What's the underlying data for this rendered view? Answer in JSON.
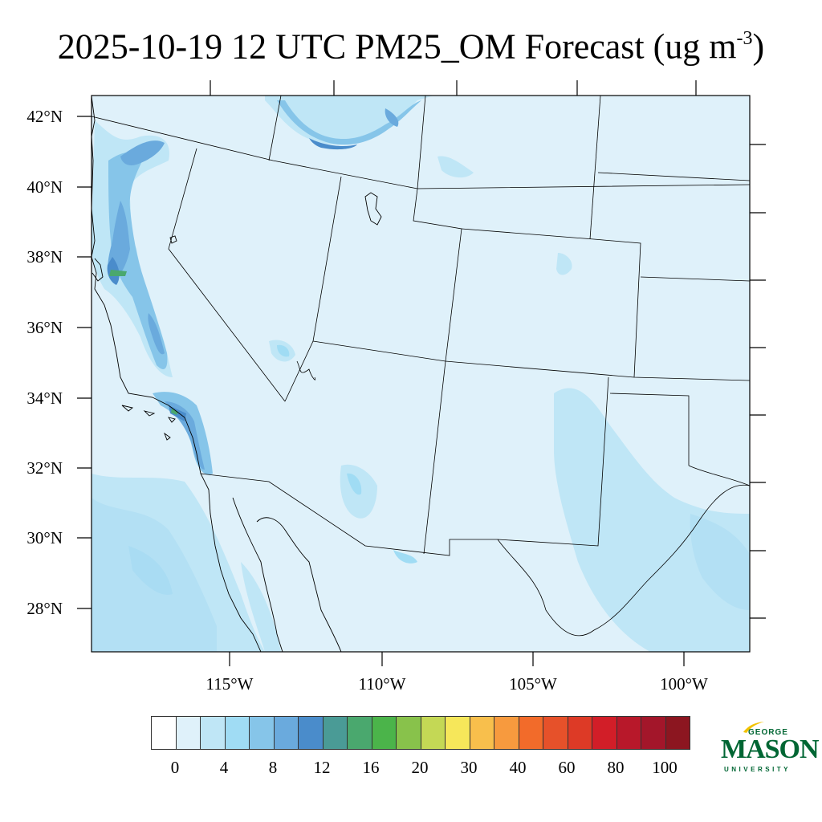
{
  "title": {
    "main": "2025-10-19 12 UTC PM25_OM Forecast (ug m",
    "exponent": "-3",
    "close": ")"
  },
  "map": {
    "lat_labels": [
      "42°N",
      "40°N",
      "38°N",
      "36°N",
      "34°N",
      "32°N",
      "30°N",
      "28°N"
    ],
    "lon_labels": [
      "115°W",
      "110°W",
      "105°W",
      "100°W"
    ],
    "background_color": "#dff1fa",
    "land_outline_color": "#000000"
  },
  "colorbar": {
    "colors": [
      "#ffffff",
      "#dff1fa",
      "#bfe6f6",
      "#a0dcf4",
      "#86c5e9",
      "#6aaadd",
      "#4a8ccb",
      "#4a9b96",
      "#4aa86e",
      "#4bb44a",
      "#88c24b",
      "#c4d855",
      "#f6e75a",
      "#f8bf4c",
      "#f79a3e",
      "#f26b2a",
      "#e6512a",
      "#dd3a26",
      "#d21e28",
      "#b8182a",
      "#a3162a",
      "#8c1620"
    ],
    "labels": [
      "0",
      "4",
      "8",
      "12",
      "16",
      "20",
      "30",
      "40",
      "60",
      "80",
      "100"
    ]
  },
  "logo": {
    "line1": "GEORGE",
    "line2": "MASON",
    "line3": "UNIVERSITY",
    "color": "#006633",
    "accent": "#f2c200"
  }
}
